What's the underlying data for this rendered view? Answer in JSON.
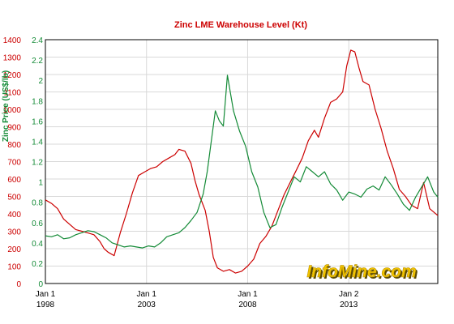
{
  "chart_data": {
    "type": "line",
    "title": "Zinc LME Warehouse Level (Kt)",
    "watermark": "InfoMine.com",
    "colors": {
      "warehouse": "#cc0000",
      "price": "#138a36",
      "grid": "#d9d9d9",
      "axis": "#000000"
    },
    "y_left": {
      "label": "",
      "range": [
        0,
        1400
      ],
      "ticks": [
        "0",
        "100",
        "200",
        "300",
        "400",
        "500",
        "600",
        "700",
        "800",
        "900",
        "1000",
        "1100",
        "1200",
        "1300",
        "1400"
      ]
    },
    "y_right": {
      "label": "Zinc Price (US$/lb)",
      "range": [
        0,
        2.4
      ],
      "ticks": [
        "0",
        "0.2",
        "0.4",
        "0.6",
        "0.8",
        "1",
        "1.2",
        "1.4",
        "1.6",
        "1.8",
        "2",
        "2.2",
        "2.4"
      ]
    },
    "x_axis": {
      "range": [
        1998.0,
        2017.4
      ],
      "ticks": [
        {
          "value": 1998.0,
          "line1": "Jan 1",
          "line2": "1998"
        },
        {
          "value": 2003.0,
          "line1": "Jan 1",
          "line2": "2003"
        },
        {
          "value": 2008.0,
          "line1": "Jan 1",
          "line2": "2008"
        },
        {
          "value": 2013.0,
          "line1": "Jan 2",
          "line2": "2013"
        }
      ]
    },
    "grid": true,
    "series": [
      {
        "name": "",
        "axis": "left",
        "x": [
          1998.0,
          1998.3,
          1998.6,
          1998.9,
          1999.2,
          1999.5,
          1999.8,
          2000.1,
          2000.4,
          2000.7,
          2000.9,
          2001.1,
          2001.4,
          2001.7,
          2002.0,
          2002.3,
          2002.6,
          2002.9,
          2003.2,
          2003.5,
          2003.8,
          2004.1,
          2004.4,
          2004.6,
          2004.9,
          2005.2,
          2005.4,
          2005.6,
          2005.9,
          2006.1,
          2006.3,
          2006.5,
          2006.8,
          2007.1,
          2007.4,
          2007.7,
          2008.0,
          2008.3,
          2008.6,
          2008.9,
          2009.2,
          2009.5,
          2009.8,
          2010.1,
          2010.4,
          2010.7,
          2011.0,
          2011.3,
          2011.5,
          2011.8,
          2012.1,
          2012.4,
          2012.7,
          2012.9,
          2013.1,
          2013.3,
          2013.5,
          2013.7,
          2014.0,
          2014.3,
          2014.6,
          2014.9,
          2015.2,
          2015.5,
          2015.8,
          2016.1,
          2016.4,
          2016.7,
          2017.0,
          2017.4
        ],
        "values": [
          480,
          460,
          430,
          370,
          340,
          310,
          300,
          290,
          280,
          240,
          200,
          180,
          160,
          290,
          400,
          520,
          620,
          640,
          660,
          670,
          700,
          720,
          740,
          770,
          760,
          690,
          590,
          510,
          420,
          300,
          150,
          90,
          70,
          80,
          60,
          70,
          100,
          140,
          230,
          270,
          330,
          420,
          510,
          580,
          650,
          720,
          820,
          880,
          840,
          950,
          1040,
          1060,
          1100,
          1250,
          1340,
          1330,
          1240,
          1160,
          1140,
          1000,
          890,
          760,
          660,
          540,
          500,
          450,
          430,
          580,
          430,
          390
        ]
      },
      {
        "name": "",
        "axis": "right",
        "x": [
          1998.0,
          1998.3,
          1998.6,
          1998.9,
          1999.2,
          1999.5,
          1999.8,
          2000.1,
          2000.4,
          2000.7,
          2001.0,
          2001.3,
          2001.6,
          2001.9,
          2002.2,
          2002.5,
          2002.8,
          2003.1,
          2003.4,
          2003.7,
          2004.0,
          2004.3,
          2004.6,
          2004.9,
          2005.2,
          2005.5,
          2005.8,
          2006.0,
          2006.2,
          2006.4,
          2006.6,
          2006.8,
          2007.0,
          2007.3,
          2007.6,
          2007.9,
          2008.2,
          2008.5,
          2008.8,
          2009.1,
          2009.4,
          2009.7,
          2010.0,
          2010.3,
          2010.6,
          2010.9,
          2011.2,
          2011.5,
          2011.8,
          2012.1,
          2012.4,
          2012.7,
          2013.0,
          2013.3,
          2013.6,
          2013.9,
          2014.2,
          2014.5,
          2014.8,
          2015.1,
          2015.4,
          2015.7,
          2016.0,
          2016.3,
          2016.6,
          2016.9,
          2017.2,
          2017.4
        ],
        "values": [
          0.47,
          0.46,
          0.48,
          0.44,
          0.45,
          0.48,
          0.5,
          0.52,
          0.51,
          0.48,
          0.45,
          0.4,
          0.38,
          0.36,
          0.37,
          0.36,
          0.35,
          0.37,
          0.36,
          0.4,
          0.46,
          0.48,
          0.5,
          0.55,
          0.62,
          0.7,
          0.88,
          1.1,
          1.4,
          1.7,
          1.6,
          1.55,
          2.05,
          1.7,
          1.5,
          1.35,
          1.1,
          0.95,
          0.7,
          0.55,
          0.58,
          0.75,
          0.9,
          1.05,
          1.0,
          1.15,
          1.1,
          1.05,
          1.1,
          0.98,
          0.92,
          0.82,
          0.9,
          0.88,
          0.85,
          0.93,
          0.96,
          0.92,
          1.05,
          0.97,
          0.88,
          0.78,
          0.72,
          0.85,
          0.95,
          1.05,
          0.9,
          0.85
        ]
      }
    ]
  }
}
